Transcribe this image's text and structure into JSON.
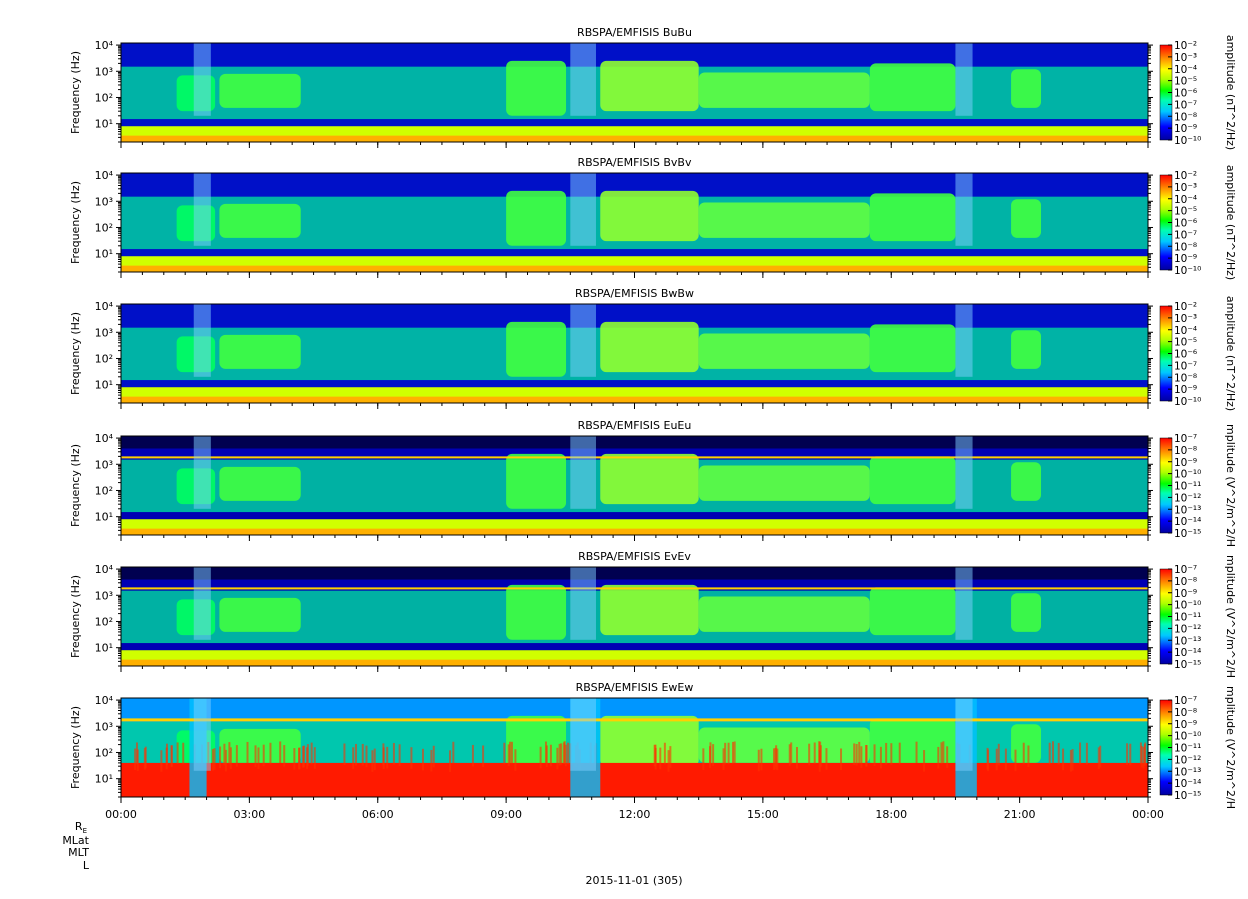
{
  "figure": {
    "date_label": "2015-11-01 (305)",
    "orbit_labels": [
      "R",
      "MLat",
      "MLT",
      "L"
    ],
    "orbit_label_sub": "E"
  },
  "chart_data": [
    {
      "type": "heatmap",
      "title": "RBSPA/EMFISIS  BuBu",
      "ylabel": "Frequency (Hz)",
      "yscale": "log",
      "ylim": [
        2,
        12000
      ],
      "y_ticks": [
        10,
        100,
        1000,
        10000
      ],
      "x_ticks": [
        "00:00",
        "03:00",
        "06:00",
        "09:00",
        "12:00",
        "15:00",
        "18:00",
        "21:00",
        "00:00"
      ],
      "xlim_hours": [
        0,
        24
      ],
      "colorbar_label": "amplitude (nT^2/Hz)",
      "colorbar_ticks_exp": [
        -2,
        -3,
        -4,
        -5,
        -6,
        -7,
        -8,
        -9,
        -10
      ],
      "colorbar_scale": "log",
      "kind": "B"
    },
    {
      "type": "heatmap",
      "title": "RBSPA/EMFISIS  BvBv",
      "ylabel": "Frequency (Hz)",
      "yscale": "log",
      "ylim": [
        2,
        12000
      ],
      "y_ticks": [
        10,
        100,
        1000,
        10000
      ],
      "x_ticks": [
        "00:00",
        "03:00",
        "06:00",
        "09:00",
        "12:00",
        "15:00",
        "18:00",
        "21:00",
        "00:00"
      ],
      "xlim_hours": [
        0,
        24
      ],
      "colorbar_label": "amplitude (nT^2/Hz)",
      "colorbar_ticks_exp": [
        -2,
        -3,
        -4,
        -5,
        -6,
        -7,
        -8,
        -9,
        -10
      ],
      "colorbar_scale": "log",
      "kind": "B"
    },
    {
      "type": "heatmap",
      "title": "RBSPA/EMFISIS  BwBw",
      "ylabel": "Frequency (Hz)",
      "yscale": "log",
      "ylim": [
        2,
        12000
      ],
      "y_ticks": [
        10,
        100,
        1000,
        10000
      ],
      "x_ticks": [
        "00:00",
        "03:00",
        "06:00",
        "09:00",
        "12:00",
        "15:00",
        "18:00",
        "21:00",
        "00:00"
      ],
      "xlim_hours": [
        0,
        24
      ],
      "colorbar_label": "amplitude (nT^2/Hz)",
      "colorbar_ticks_exp": [
        -2,
        -3,
        -4,
        -5,
        -6,
        -7,
        -8,
        -9,
        -10
      ],
      "colorbar_scale": "log",
      "kind": "B"
    },
    {
      "type": "heatmap",
      "title": "RBSPA/EMFISIS  EuEu",
      "ylabel": "Frequency (Hz)",
      "yscale": "log",
      "ylim": [
        2,
        12000
      ],
      "y_ticks": [
        10,
        100,
        1000,
        10000
      ],
      "x_ticks": [
        "00:00",
        "03:00",
        "06:00",
        "09:00",
        "12:00",
        "15:00",
        "18:00",
        "21:00",
        "00:00"
      ],
      "xlim_hours": [
        0,
        24
      ],
      "colorbar_label": "mplitude (V^2/m^2/H",
      "colorbar_ticks_exp": [
        -7,
        -8,
        -9,
        -10,
        -11,
        -12,
        -13,
        -14,
        -15
      ],
      "colorbar_scale": "log",
      "kind": "E"
    },
    {
      "type": "heatmap",
      "title": "RBSPA/EMFISIS  EvEv",
      "ylabel": "Frequency (Hz)",
      "yscale": "log",
      "ylim": [
        2,
        12000
      ],
      "y_ticks": [
        10,
        100,
        1000,
        10000
      ],
      "x_ticks": [
        "00:00",
        "03:00",
        "06:00",
        "09:00",
        "12:00",
        "15:00",
        "18:00",
        "21:00",
        "00:00"
      ],
      "xlim_hours": [
        0,
        24
      ],
      "colorbar_label": "mplitude (V^2/m^2/H",
      "colorbar_ticks_exp": [
        -7,
        -8,
        -9,
        -10,
        -11,
        -12,
        -13,
        -14,
        -15
      ],
      "colorbar_scale": "log",
      "kind": "E"
    },
    {
      "type": "heatmap",
      "title": "RBSPA/EMFISIS  EwEw",
      "ylabel": "Frequency (Hz)",
      "yscale": "log",
      "ylim": [
        2,
        12000
      ],
      "y_ticks": [
        10,
        100,
        1000,
        10000
      ],
      "x_ticks": [
        "00:00",
        "03:00",
        "06:00",
        "09:00",
        "12:00",
        "15:00",
        "18:00",
        "21:00",
        "00:00"
      ],
      "xlim_hours": [
        0,
        24
      ],
      "colorbar_label": "mplitude (V^2/m^2/H",
      "colorbar_ticks_exp": [
        -7,
        -8,
        -9,
        -10,
        -11,
        -12,
        -13,
        -14,
        -15
      ],
      "colorbar_scale": "log",
      "kind": "Ew"
    }
  ]
}
